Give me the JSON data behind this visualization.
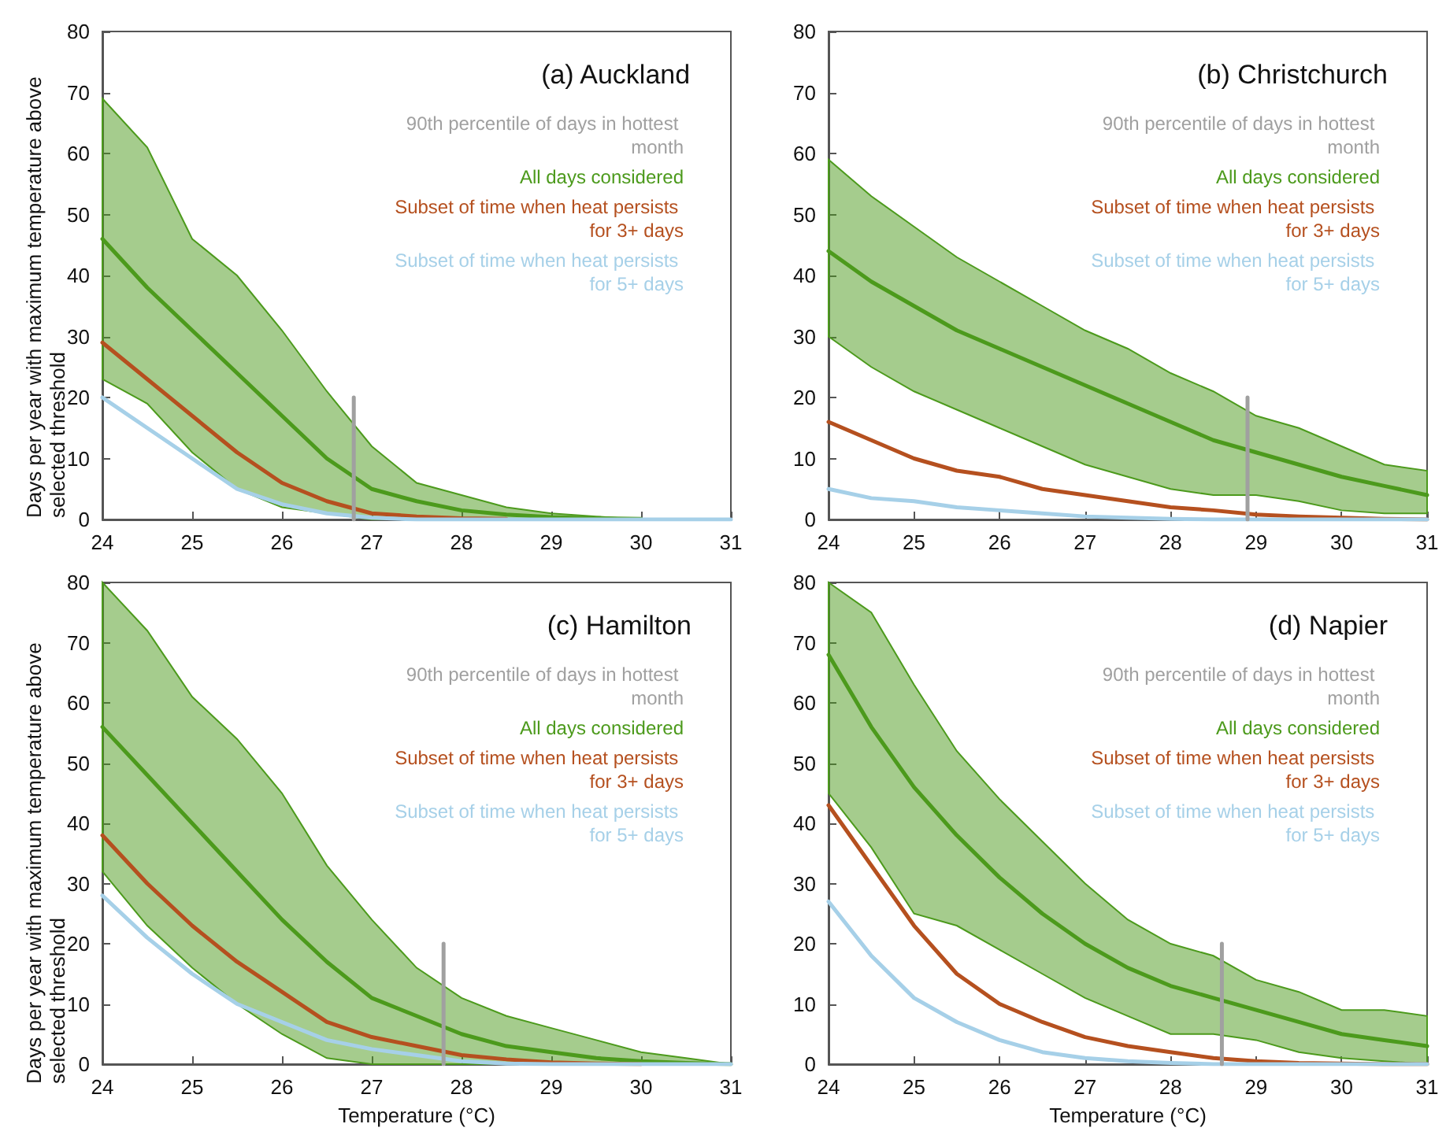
{
  "chart_data": [
    {
      "type": "line",
      "title": "(a) Auckland",
      "ylabel": "Days per year with maximum temperature above selected threshold",
      "x": [
        24,
        24.5,
        25,
        25.5,
        26,
        26.5,
        27,
        27.5,
        28,
        28.5,
        29,
        29.5,
        30,
        30.5,
        31
      ],
      "xlim": [
        24,
        31
      ],
      "xticks": [
        24,
        25,
        26,
        27,
        28,
        29,
        30,
        31
      ],
      "ylim": [
        0,
        80
      ],
      "yticks": [
        0,
        10,
        20,
        30,
        40,
        50,
        60,
        70,
        80
      ],
      "grid": false,
      "legend": "top right",
      "marker": "none",
      "line_style": "solid",
      "series": [
        {
          "name": "90th percentile of days in hottest month",
          "color": "#a0a0a0",
          "x": [
            26.8,
            26.8
          ],
          "values": [
            0,
            20
          ]
        },
        {
          "name": "All days considered",
          "color": "#4c9a1c",
          "values": [
            46,
            38,
            31,
            24,
            17,
            10,
            5,
            3,
            1.5,
            0.8,
            0.4,
            0.2,
            0.1,
            null,
            null
          ],
          "lower": [
            23,
            19,
            11,
            5,
            2,
            1,
            0,
            0,
            0,
            0,
            0,
            0,
            0,
            0,
            0
          ],
          "upper": [
            69,
            61,
            46,
            40,
            31,
            21,
            12,
            6,
            4,
            2,
            1,
            0.5,
            0,
            0,
            0
          ]
        },
        {
          "name": "Subset of time when heat persists for 3+ days",
          "color": "#b5501f",
          "values": [
            29,
            23,
            17,
            11,
            6,
            3,
            1,
            0.5,
            0.2,
            0.1,
            null,
            null,
            null,
            null,
            null
          ]
        },
        {
          "name": "Subset of time when heat persists for 5+ days",
          "color": "#a6d0e8",
          "values": [
            20,
            15,
            10,
            5,
            2.5,
            1,
            0.3,
            0,
            0,
            0,
            0,
            0,
            0,
            0,
            0
          ]
        }
      ]
    },
    {
      "type": "line",
      "title": "(b) Christchurch",
      "x": [
        24,
        24.5,
        25,
        25.5,
        26,
        26.5,
        27,
        27.5,
        28,
        28.5,
        29,
        29.5,
        30,
        30.5,
        31
      ],
      "xlim": [
        24,
        31
      ],
      "xticks": [
        24,
        25,
        26,
        27,
        28,
        29,
        30,
        31
      ],
      "ylim": [
        0,
        80
      ],
      "yticks": [
        0,
        10,
        20,
        30,
        40,
        50,
        60,
        70,
        80
      ],
      "grid": false,
      "legend": "top right",
      "marker": "none",
      "line_style": "solid",
      "series": [
        {
          "name": "90th percentile of days in hottest month",
          "color": "#a0a0a0",
          "x": [
            28.9,
            28.9
          ],
          "values": [
            0,
            20
          ]
        },
        {
          "name": "All days considered",
          "color": "#4c9a1c",
          "values": [
            44,
            39,
            35,
            31,
            28,
            25,
            22,
            19,
            16,
            13,
            11,
            9,
            7,
            5.5,
            4
          ],
          "lower": [
            30,
            25,
            21,
            18,
            15,
            12,
            9,
            7,
            5,
            4,
            4,
            3,
            1.5,
            1,
            1
          ],
          "upper": [
            59,
            53,
            48,
            43,
            39,
            35,
            31,
            28,
            24,
            21,
            17,
            15,
            12,
            9,
            8
          ]
        },
        {
          "name": "Subset of time when heat persists for 3+ days",
          "color": "#b5501f",
          "values": [
            16,
            13,
            10,
            8,
            7,
            5,
            4,
            3,
            2,
            1.5,
            0.8,
            0.5,
            0.3,
            0.1,
            0
          ]
        },
        {
          "name": "Subset of time when heat persists for 5+ days",
          "color": "#a6d0e8",
          "values": [
            5,
            3.5,
            3,
            2,
            1.5,
            1,
            0.5,
            0.3,
            0.1,
            0,
            0,
            0,
            0,
            0,
            0
          ]
        }
      ]
    },
    {
      "type": "line",
      "title": "(c) Hamilton",
      "xlabel": "Temperature (°C)",
      "ylabel": "Days per year with maximum temperature above selected threshold",
      "x": [
        24,
        24.5,
        25,
        25.5,
        26,
        26.5,
        27,
        27.5,
        28,
        28.5,
        29,
        29.5,
        30,
        30.5,
        31
      ],
      "xlim": [
        24,
        31
      ],
      "xticks": [
        24,
        25,
        26,
        27,
        28,
        29,
        30,
        31
      ],
      "ylim": [
        0,
        80
      ],
      "yticks": [
        0,
        10,
        20,
        30,
        40,
        50,
        60,
        70,
        80
      ],
      "grid": false,
      "legend": "top right",
      "marker": "none",
      "line_style": "solid",
      "series": [
        {
          "name": "90th percentile of days in hottest month",
          "color": "#a0a0a0",
          "x": [
            27.8,
            27.8
          ],
          "values": [
            0,
            20
          ]
        },
        {
          "name": "All days considered",
          "color": "#4c9a1c",
          "values": [
            56,
            48,
            40,
            32,
            24,
            17,
            11,
            8,
            5,
            3,
            2,
            1,
            0.5,
            0.2,
            0
          ],
          "lower": [
            32,
            23,
            16,
            10,
            5,
            1,
            0,
            0,
            0,
            0,
            0,
            0,
            0,
            0,
            0
          ],
          "upper": [
            80,
            72,
            61,
            54,
            45,
            33,
            24,
            16,
            11,
            8,
            6,
            4,
            2,
            1,
            0
          ]
        },
        {
          "name": "Subset of time when heat persists for 3+ days",
          "color": "#b5501f",
          "values": [
            38,
            30,
            23,
            17,
            12,
            7,
            4.5,
            3,
            1.5,
            0.8,
            0.3,
            0.1,
            0,
            null,
            null
          ]
        },
        {
          "name": "Subset of time when heat persists for 5+ days",
          "color": "#a6d0e8",
          "values": [
            28,
            21,
            15,
            10,
            7,
            4,
            2.5,
            1.5,
            0.5,
            0.1,
            0,
            0,
            0,
            0,
            0
          ]
        }
      ]
    },
    {
      "type": "line",
      "title": "(d) Napier",
      "xlabel": "Temperature (°C)",
      "x": [
        24,
        24.5,
        25,
        25.5,
        26,
        26.5,
        27,
        27.5,
        28,
        28.5,
        29,
        29.5,
        30,
        30.5,
        31
      ],
      "xlim": [
        24,
        31
      ],
      "xticks": [
        24,
        25,
        26,
        27,
        28,
        29,
        30,
        31
      ],
      "ylim": [
        0,
        80
      ],
      "yticks": [
        0,
        10,
        20,
        30,
        40,
        50,
        60,
        70,
        80
      ],
      "grid": false,
      "legend": "top right",
      "marker": "none",
      "line_style": "solid",
      "series": [
        {
          "name": "90th percentile of days in hottest month",
          "color": "#a0a0a0",
          "x": [
            28.6,
            28.6
          ],
          "values": [
            0,
            20
          ]
        },
        {
          "name": "All days considered",
          "color": "#4c9a1c",
          "values": [
            68,
            56,
            46,
            38,
            31,
            25,
            20,
            16,
            13,
            11,
            9,
            7,
            5,
            4,
            3
          ],
          "lower": [
            45,
            36,
            25,
            23,
            19,
            15,
            11,
            8,
            5,
            5,
            4,
            2,
            1,
            0.5,
            0
          ],
          "upper": [
            80,
            75,
            63,
            52,
            44,
            37,
            30,
            24,
            20,
            18,
            14,
            12,
            9,
            9,
            8
          ]
        },
        {
          "name": "Subset of time when heat persists for 3+ days",
          "color": "#b5501f",
          "values": [
            43,
            33,
            23,
            15,
            10,
            7,
            4.5,
            3,
            2,
            1,
            0.5,
            0.2,
            0.1,
            0,
            0
          ]
        },
        {
          "name": "Subset of time when heat persists for 5+ days",
          "color": "#a6d0e8",
          "values": [
            27,
            18,
            11,
            7,
            4,
            2,
            1,
            0.5,
            0.2,
            0,
            0,
            0,
            0,
            0,
            0
          ]
        }
      ]
    }
  ]
}
